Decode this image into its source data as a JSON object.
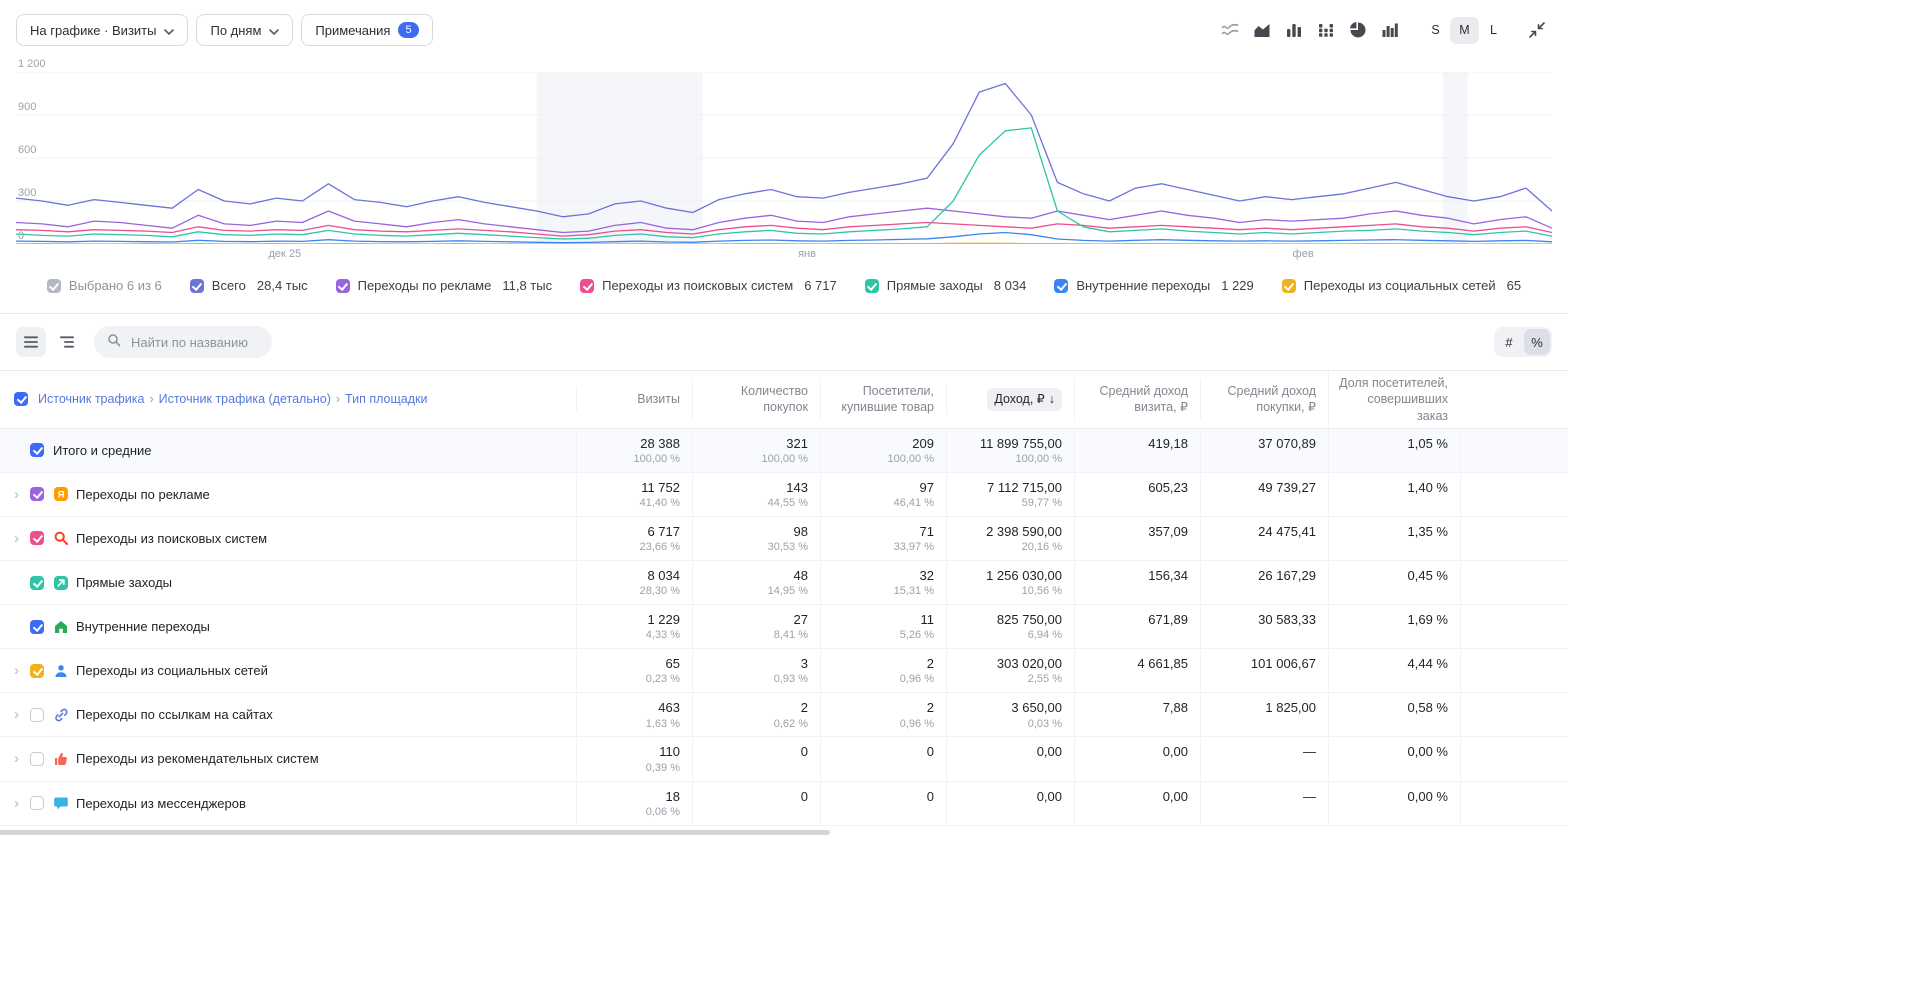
{
  "toolbar": {
    "metric_button": "На графике · Визиты",
    "grouping_button": "По дням",
    "notes_button": "Примечания",
    "notes_badge": "5",
    "size_s": "S",
    "size_m": "M",
    "size_l": "L",
    "active_size": "M",
    "chart_type_icons": [
      "multiline-chart-icon",
      "area-chart-icon",
      "bar-chart-icon",
      "stacked-bar-chart-icon",
      "pie-chart-icon",
      "column-chart-icon"
    ],
    "collapse_icon": "collapse-icon"
  },
  "chart_data": {
    "type": "line",
    "grouping": "day",
    "title": "",
    "x_axis": {
      "tick_labels": [
        {
          "label": "дек 25",
          "pos": 0.175
        },
        {
          "label": "янв",
          "pos": 0.515
        },
        {
          "label": "фев",
          "pos": 0.838
        }
      ]
    },
    "y_axis": {
      "min": 0,
      "max": 1200,
      "ticks": [
        0,
        300,
        600,
        900,
        1200
      ],
      "tick_labels": [
        "0",
        "300",
        "600",
        "900",
        "1 200"
      ]
    },
    "holiday_bands": [
      {
        "start": 0.339,
        "end": 0.447
      },
      {
        "start": 0.929,
        "end": 0.945
      }
    ],
    "series": [
      {
        "name": "Всего",
        "total": "28,4 тыс",
        "color": "#6b74d8",
        "values": [
          320,
          300,
          270,
          310,
          290,
          270,
          250,
          380,
          300,
          280,
          320,
          300,
          420,
          310,
          290,
          260,
          300,
          330,
          290,
          260,
          230,
          190,
          210,
          280,
          300,
          250,
          220,
          310,
          350,
          380,
          330,
          320,
          360,
          390,
          420,
          460,
          700,
          1060,
          1120,
          900,
          430,
          350,
          300,
          390,
          420,
          380,
          340,
          300,
          330,
          310,
          330,
          350,
          390,
          430,
          380,
          330,
          300,
          330,
          390,
          230
        ]
      },
      {
        "name": "Переходы по рекламе",
        "total": "11,8 тыс",
        "color": "#9a63e0",
        "values": [
          150,
          140,
          120,
          160,
          150,
          130,
          110,
          200,
          140,
          130,
          160,
          150,
          230,
          160,
          140,
          120,
          150,
          170,
          140,
          120,
          100,
          80,
          90,
          130,
          150,
          110,
          100,
          150,
          180,
          200,
          160,
          150,
          190,
          210,
          230,
          250,
          230,
          210,
          190,
          180,
          230,
          200,
          170,
          200,
          230,
          200,
          180,
          150,
          170,
          160,
          170,
          180,
          210,
          230,
          200,
          180,
          140,
          170,
          190,
          110
        ]
      },
      {
        "name": "Переходы из поисковых систем",
        "total": "6 717",
        "color": "#ef4d8e",
        "values": [
          100,
          95,
          85,
          100,
          95,
          90,
          80,
          120,
          95,
          90,
          100,
          95,
          130,
          100,
          90,
          85,
          95,
          105,
          95,
          85,
          70,
          55,
          65,
          90,
          100,
          80,
          70,
          100,
          120,
          130,
          110,
          100,
          120,
          130,
          140,
          150,
          140,
          130,
          120,
          110,
          140,
          130,
          110,
          120,
          130,
          120,
          110,
          100,
          110,
          100,
          110,
          120,
          130,
          140,
          120,
          110,
          90,
          110,
          120,
          80
        ]
      },
      {
        "name": "Прямые заходы",
        "total": "8 034",
        "color": "#2cc6a6",
        "values": [
          70,
          60,
          55,
          70,
          65,
          60,
          50,
          85,
          65,
          60,
          70,
          65,
          95,
          70,
          60,
          55,
          65,
          75,
          65,
          55,
          45,
          35,
          40,
          60,
          70,
          50,
          45,
          70,
          85,
          95,
          75,
          70,
          85,
          95,
          105,
          120,
          300,
          620,
          790,
          810,
          230,
          120,
          85,
          95,
          105,
          90,
          80,
          70,
          80,
          70,
          80,
          90,
          95,
          105,
          90,
          80,
          65,
          80,
          90,
          55
        ]
      },
      {
        "name": "Внутренние переходы",
        "total": "1 229",
        "color": "#3a86f1",
        "values": [
          20,
          18,
          15,
          20,
          18,
          16,
          14,
          26,
          18,
          16,
          20,
          18,
          30,
          20,
          17,
          15,
          18,
          22,
          18,
          15,
          12,
          10,
          11,
          16,
          20,
          14,
          12,
          20,
          25,
          28,
          22,
          20,
          25,
          28,
          32,
          36,
          50,
          70,
          80,
          65,
          35,
          25,
          20,
          26,
          30,
          26,
          22,
          20,
          22,
          20,
          22,
          25,
          28,
          30,
          26,
          22,
          18,
          22,
          25,
          15
        ]
      },
      {
        "name": "Переходы из социальных сетей",
        "total": "65",
        "color": "#f0b21c",
        "values": [
          1,
          2,
          1,
          0,
          1,
          2,
          1,
          3,
          1,
          0,
          2,
          1,
          3,
          2,
          1,
          0,
          1,
          2,
          1,
          1,
          0,
          0,
          1,
          1,
          2,
          1,
          0,
          1,
          2,
          2,
          1,
          1,
          2,
          2,
          3,
          3,
          4,
          5,
          4,
          3,
          2,
          1,
          1,
          2,
          2,
          1,
          1,
          1,
          1,
          1,
          1,
          1,
          2,
          2,
          1,
          1,
          0,
          1,
          1,
          0
        ]
      }
    ]
  },
  "legend": {
    "selected_summary": "Выбрано 6 из 6"
  },
  "table_controls": {
    "search_placeholder": "Найти по названию",
    "hash_label": "#",
    "percent_label": "%",
    "active_format": "%"
  },
  "table": {
    "dimension": {
      "p1": "Источник трафика",
      "p2": "Источник трафика (детально)",
      "p3": "Тип площадки",
      "sep": "›"
    },
    "columns": [
      "Визиты",
      "Количество покупок",
      "Посетители, купившие товар",
      "Доход, ₽",
      "Средний доход визита, ₽",
      "Средний доход покупки, ₽",
      "Доля посетителей, совершивших заказ"
    ],
    "sort_arrow": "↓",
    "sorted_column": "Доход, ₽",
    "rows": [
      {
        "is_total": true,
        "expandable": false,
        "checked": true,
        "check_color": "#3d6bf5",
        "icon": null,
        "name": "Итого и средние",
        "visits": "28 388",
        "visits_pct": "100,00 %",
        "purchases": "321",
        "purchases_pct": "100,00 %",
        "buyers": "209",
        "buyers_pct": "100,00 %",
        "revenue": "11 899 755,00",
        "revenue_pct": "100,00 %",
        "avg_visit": "419,18",
        "avg_purchase": "37 070,89",
        "share": "1,05 %"
      },
      {
        "expandable": true,
        "checked": true,
        "check_color": "#9a63e0",
        "icon": "ad-icon",
        "name": "Переходы по рекламе",
        "visits": "11 752",
        "visits_pct": "41,40 %",
        "purchases": "143",
        "purchases_pct": "44,55 %",
        "buyers": "97",
        "buyers_pct": "46,41 %",
        "revenue": "7 112 715,00",
        "revenue_pct": "59,77 %",
        "avg_visit": "605,23",
        "avg_purchase": "49 739,27",
        "share": "1,40 %"
      },
      {
        "expandable": true,
        "checked": true,
        "check_color": "#ef4d8e",
        "icon": "search-icon",
        "name": "Переходы из поисковых систем",
        "visits": "6 717",
        "visits_pct": "23,66 %",
        "purchases": "98",
        "purchases_pct": "30,53 %",
        "buyers": "71",
        "buyers_pct": "33,97 %",
        "revenue": "2 398 590,00",
        "revenue_pct": "20,16 %",
        "avg_visit": "357,09",
        "avg_purchase": "24 475,41",
        "share": "1,35 %"
      },
      {
        "expandable": false,
        "checked": true,
        "check_color": "#2cc6a6",
        "icon": "direct-icon",
        "name": "Прямые заходы",
        "visits": "8 034",
        "visits_pct": "28,30 %",
        "purchases": "48",
        "purchases_pct": "14,95 %",
        "buyers": "32",
        "buyers_pct": "15,31 %",
        "revenue": "1 256 030,00",
        "revenue_pct": "10,56 %",
        "avg_visit": "156,34",
        "avg_purchase": "26 167,29",
        "share": "0,45 %"
      },
      {
        "expandable": false,
        "checked": true,
        "check_color": "#3d6bf5",
        "icon": "home-icon",
        "name": "Внутренние переходы",
        "visits": "1 229",
        "visits_pct": "4,33 %",
        "purchases": "27",
        "purchases_pct": "8,41 %",
        "buyers": "11",
        "buyers_pct": "5,26 %",
        "revenue": "825 750,00",
        "revenue_pct": "6,94 %",
        "avg_visit": "671,89",
        "avg_purchase": "30 583,33",
        "share": "1,69 %"
      },
      {
        "expandable": true,
        "checked": true,
        "check_color": "#f0b21c",
        "icon": "person-icon",
        "name": "Переходы из социальных сетей",
        "visits": "65",
        "visits_pct": "0,23 %",
        "purchases": "3",
        "purchases_pct": "0,93 %",
        "buyers": "2",
        "buyers_pct": "0,96 %",
        "revenue": "303 020,00",
        "revenue_pct": "2,55 %",
        "avg_visit": "4 661,85",
        "avg_purchase": "101 006,67",
        "share": "4,44 %"
      },
      {
        "expandable": true,
        "checked": false,
        "check_color": null,
        "icon": "link-icon",
        "name": "Переходы по ссылкам на сайтах",
        "visits": "463",
        "visits_pct": "1,63 %",
        "purchases": "2",
        "purchases_pct": "0,62 %",
        "buyers": "2",
        "buyers_pct": "0,96 %",
        "revenue": "3 650,00",
        "revenue_pct": "0,03 %",
        "avg_visit": "7,88",
        "avg_purchase": "1 825,00",
        "share": "0,58 %"
      },
      {
        "expandable": true,
        "checked": false,
        "check_color": null,
        "icon": "thumbs-up-icon",
        "name": "Переходы из рекомендательных систем",
        "visits": "110",
        "visits_pct": "0,39 %",
        "purchases": "0",
        "buyers": "0",
        "revenue": "0,00",
        "avg_visit": "0,00",
        "avg_purchase": "—",
        "share": "0,00 %"
      },
      {
        "expandable": true,
        "checked": false,
        "check_color": null,
        "icon": "chat-icon",
        "name": "Переходы из мессенджеров",
        "visits": "18",
        "visits_pct": "0,06 %",
        "purchases": "0",
        "buyers": "0",
        "revenue": "0,00",
        "avg_visit": "0,00",
        "avg_purchase": "—",
        "share": "0,00 %"
      }
    ]
  }
}
